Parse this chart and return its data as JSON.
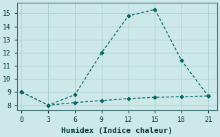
{
  "xlabel": "Humidex (Indice chaleur)",
  "background_color": "#cce8e8",
  "line_color": "#006666",
  "grid_color": "#aacfcf",
  "x_line1": [
    0,
    3,
    6,
    9,
    12,
    15,
    18,
    21
  ],
  "y_line1": [
    9.0,
    8.0,
    8.8,
    12.0,
    14.8,
    15.3,
    11.4,
    8.7
  ],
  "x_line2": [
    0,
    3,
    6,
    9,
    12,
    15,
    18,
    21
  ],
  "y_line2": [
    9.0,
    8.0,
    8.2,
    8.35,
    8.5,
    8.6,
    8.65,
    8.7
  ],
  "xlim": [
    -0.5,
    22
  ],
  "ylim": [
    7.6,
    15.8
  ],
  "xticks": [
    0,
    3,
    6,
    9,
    12,
    15,
    18,
    21
  ],
  "yticks": [
    8,
    9,
    10,
    11,
    12,
    13,
    14,
    15
  ],
  "marker": "D",
  "marker_size": 2.5,
  "line_width": 1.0,
  "tick_fontsize": 7,
  "xlabel_fontsize": 8
}
